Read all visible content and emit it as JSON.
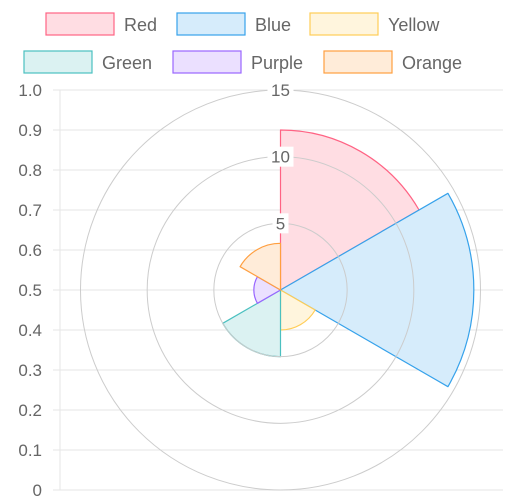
{
  "chart_data": {
    "type": "polarArea",
    "categories": [
      "Red",
      "Blue",
      "Yellow",
      "Green",
      "Purple",
      "Orange"
    ],
    "values": [
      12,
      14.5,
      3,
      5,
      2,
      3.5
    ],
    "radial_scale": {
      "min": 0,
      "max": 15,
      "ticks": [
        5,
        10,
        15
      ]
    },
    "y_axis": {
      "min": 0,
      "max": 1,
      "ticks": [
        "0",
        "0.1",
        "0.2",
        "0.3",
        "0.4",
        "0.5",
        "0.6",
        "0.7",
        "0.8",
        "0.9",
        "1.0"
      ]
    },
    "legend": {
      "position": "top"
    },
    "colors": {
      "fill": [
        "#ffdde3",
        "#d6ecfb",
        "#fff5dd",
        "#dbf2f2",
        "#ebe0ff",
        "#ffecd9"
      ],
      "stroke": [
        "#ff6384",
        "#36a2eb",
        "#ffcd56",
        "#4bc0c0",
        "#9966ff",
        "#ff9f40"
      ],
      "grid": "#e5e5e5",
      "radial_grid": "#cccccc"
    }
  }
}
